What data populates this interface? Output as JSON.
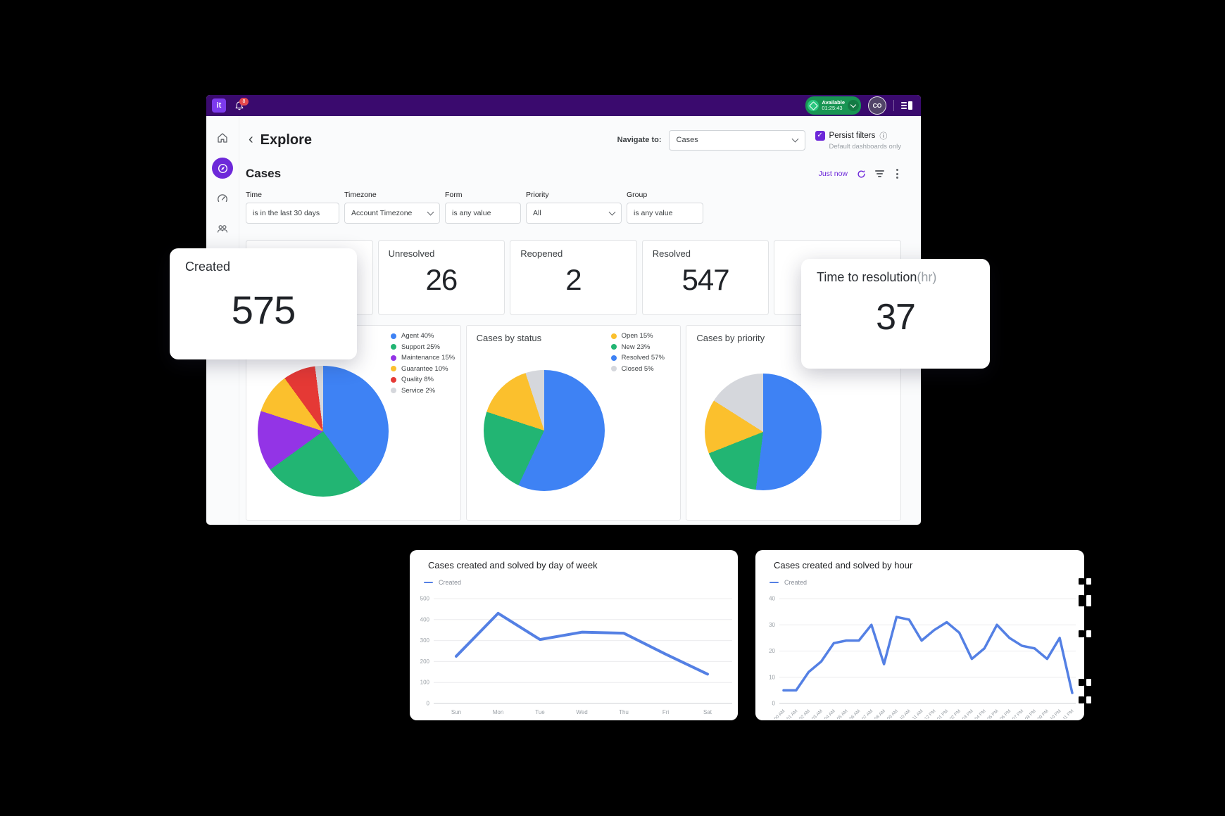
{
  "colors": {
    "background": "#000000",
    "topbar": "#3a0a6e",
    "logo_bg": "#7c3aed",
    "accent_purple": "#6d28d9",
    "active_icon_bg": "#6d28d9",
    "status_green": "#189553",
    "status_green_light": "#2bc77f",
    "badge_red": "#e5484d",
    "line_blue": "#5480e4"
  },
  "topbar": {
    "logo_text": "it",
    "notification_count": "8",
    "status_label": "Available",
    "status_timer": "01:25:43",
    "avatar_initials": "CO"
  },
  "header": {
    "back_icon": "‹",
    "title": "Explore",
    "navigate_label": "Navigate to:",
    "navigate_value": "Cases",
    "persist_filters_label": "Persist filters",
    "persist_filters_note": "Default dashboards only",
    "checkbox_checked": "✓"
  },
  "section": {
    "title": "Cases",
    "updated_label": "Just now"
  },
  "filters": [
    {
      "label": "Time",
      "value": "is in the last 30 days",
      "type": "input"
    },
    {
      "label": "Timezone",
      "value": "Account Timezone",
      "type": "select"
    },
    {
      "label": "Form",
      "value": "is any value",
      "type": "input"
    },
    {
      "label": "Priority",
      "value": "All",
      "type": "select"
    },
    {
      "label": "Group",
      "value": "is any value",
      "type": "input"
    }
  ],
  "metrics": [
    {
      "label": "Created",
      "value": "575"
    },
    {
      "label": "Unresolved",
      "value": "26"
    },
    {
      "label": "Reopened",
      "value": "2"
    },
    {
      "label": "Resolved",
      "value": "547"
    },
    {
      "label": "Time to resolution",
      "unit_suffix": "(hr)",
      "value": "37"
    }
  ],
  "chart_data": [
    {
      "id": "cases-by-type-pie",
      "type": "pie",
      "title": "",
      "legend_position": "right",
      "legend": [
        {
          "label": "Agent",
          "pct": 40,
          "color": "#3e82f4"
        },
        {
          "label": "Support",
          "pct": 25,
          "color": "#22b573"
        },
        {
          "label": "Maintenance",
          "pct": 15,
          "color": "#9334e6"
        },
        {
          "label": "Guarantee",
          "pct": 10,
          "color": "#fbc02d"
        },
        {
          "label": "Quality",
          "pct": 8,
          "color": "#e53935"
        },
        {
          "label": "Service",
          "pct": 2,
          "color": "#d5d7dc"
        }
      ],
      "draw_order": [
        0,
        1,
        2,
        3,
        4,
        5
      ]
    },
    {
      "id": "cases-by-status-pie",
      "type": "pie",
      "title": "Cases by status",
      "legend_position": "right",
      "legend": [
        {
          "label": "Open",
          "pct": 15,
          "color": "#fbc02d"
        },
        {
          "label": "New",
          "pct": 23,
          "color": "#22b573"
        },
        {
          "label": "Resolved",
          "pct": 57,
          "color": "#3e82f4"
        },
        {
          "label": "Closed",
          "pct": 5,
          "color": "#d5d7dc"
        }
      ],
      "draw_order": [
        2,
        1,
        0,
        3
      ]
    },
    {
      "id": "cases-by-priority-pie",
      "type": "pie",
      "title": "Cases by priority",
      "legend_visible": false,
      "segments": [
        {
          "pct": 52,
          "color": "#3e82f4"
        },
        {
          "pct": 17,
          "color": "#22b573"
        },
        {
          "pct": 15,
          "color": "#fbc02d"
        },
        {
          "pct": 16,
          "color": "#d5d7dc"
        }
      ]
    },
    {
      "id": "cases-by-day-line",
      "type": "line",
      "title": "Cases created and solved by day of week",
      "categories": [
        "Sun",
        "Mon",
        "Tue",
        "Wed",
        "Thu",
        "Fri",
        "Sat"
      ],
      "series": [
        {
          "name": "Created",
          "color": "#5480e4",
          "values": [
            225,
            430,
            305,
            340,
            335,
            235,
            140
          ]
        }
      ],
      "ylim": [
        0,
        500
      ],
      "yticks": [
        0,
        100,
        200,
        300,
        400,
        500
      ],
      "grid": true,
      "legend_position": "top-left"
    },
    {
      "id": "cases-by-hour-line",
      "type": "line",
      "title": "Cases created and solved by hour",
      "categories": [
        "00 AM",
        "01 AM",
        "02 AM",
        "03 AM",
        "04 AM",
        "05 AM",
        "06 AM",
        "07 AM",
        "08 AM",
        "09 AM",
        "10 AM",
        "11 AM",
        "12 PM",
        "01 PM",
        "02 PM",
        "03 PM",
        "04 PM",
        "05 PM",
        "06 PM",
        "07 PM",
        "08 PM",
        "09 PM",
        "10 PM",
        "11 PM"
      ],
      "series": [
        {
          "name": "Created",
          "color": "#5480e4",
          "values": [
            5,
            5,
            12,
            16,
            23,
            24,
            24,
            30,
            15,
            33,
            32,
            24,
            28,
            31,
            27,
            17,
            21,
            30,
            25,
            22,
            21,
            17,
            25,
            4
          ]
        }
      ],
      "ylim": [
        0,
        40
      ],
      "yticks": [
        0,
        10,
        20,
        30,
        40
      ],
      "grid": true,
      "legend_position": "top-left"
    }
  ]
}
